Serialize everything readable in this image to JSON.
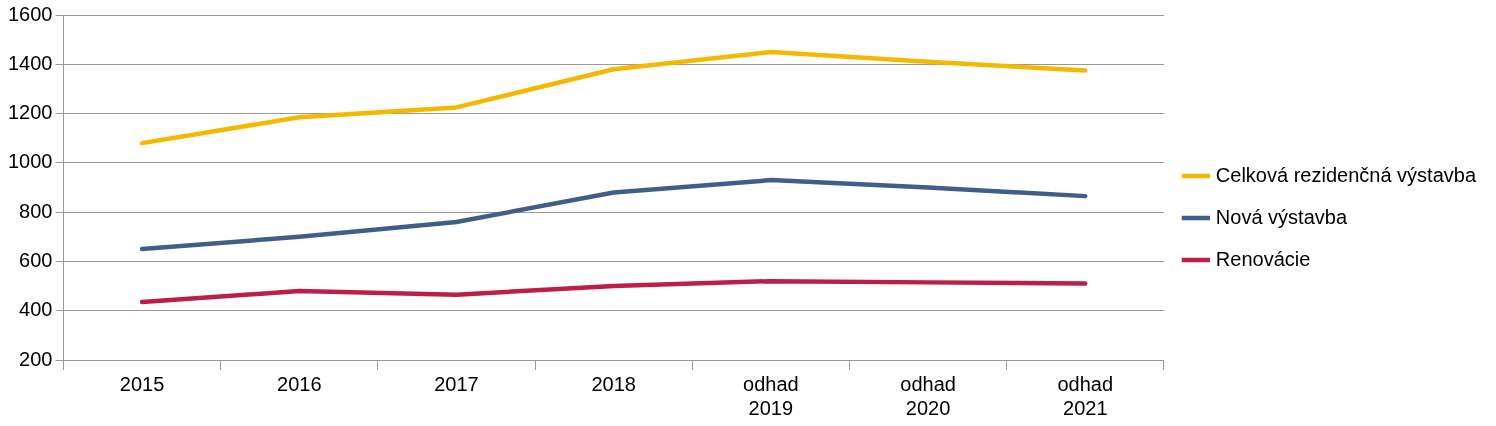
{
  "chart_data": {
    "type": "line",
    "categories": [
      "2015",
      "2016",
      "2017",
      "2018",
      "odhad 2019",
      "odhad 2020",
      "odhad 2021"
    ],
    "series": [
      {
        "name": "Celková rezidenčná výstavba",
        "color": "#f5b800",
        "values": [
          1080,
          1185,
          1225,
          1380,
          1450,
          1410,
          1375
        ]
      },
      {
        "name": "Nová výstavba",
        "color": "#3f5f8a",
        "values": [
          650,
          700,
          760,
          880,
          930,
          900,
          865
        ]
      },
      {
        "name": "Renovácie",
        "color": "#be1e45",
        "values": [
          435,
          480,
          465,
          500,
          520,
          515,
          510
        ]
      }
    ],
    "ylim": [
      200,
      1600
    ],
    "yticks": [
      200,
      400,
      600,
      800,
      1000,
      1200,
      1400,
      1600
    ],
    "grid": "y",
    "legend": "right",
    "marker": "none",
    "line_style": "solid"
  }
}
